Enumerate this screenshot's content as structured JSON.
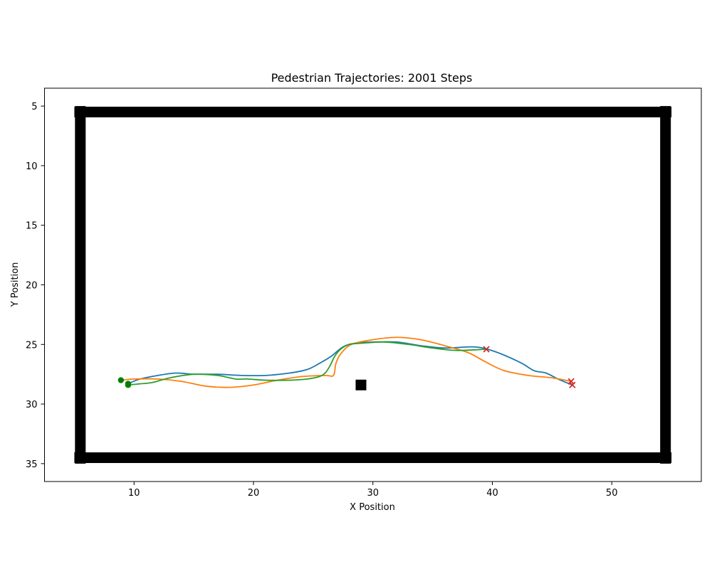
{
  "chart_data": {
    "type": "line",
    "title": "Pedestrian Trajectories: 2001 Steps",
    "xlabel": "X Position",
    "ylabel": "Y Position",
    "xlim": [
      2.5,
      57.5
    ],
    "ylim": [
      36.5,
      3.5
    ],
    "y_inverted": true,
    "xticks": [
      10,
      20,
      30,
      40,
      50
    ],
    "yticks": [
      5,
      10,
      15,
      20,
      25,
      30,
      35
    ],
    "grid": false,
    "legend": "none",
    "walls": [
      {
        "x": [
          5,
          55
        ],
        "y": [
          5.5,
          5.5
        ]
      },
      {
        "x": [
          5,
          55
        ],
        "y": [
          34.5,
          34.5
        ]
      },
      {
        "x": [
          5.5,
          5.5
        ],
        "y": [
          5,
          35
        ]
      },
      {
        "x": [
          54.5,
          54.5
        ],
        "y": [
          5,
          35
        ]
      }
    ],
    "obstacles": [
      {
        "x": 29.0,
        "y": 28.4
      }
    ],
    "series": [
      {
        "color": "#1f77b4",
        "start": {
          "x": 9.5,
          "y": 28.3
        },
        "end": {
          "x": 46.7,
          "y": 28.4
        },
        "x": [
          9.5,
          10.5,
          12,
          13.5,
          15,
          17,
          19,
          21,
          23,
          24.5,
          25.5,
          26.5,
          27.5,
          28.5,
          30,
          32,
          34,
          36,
          38.3,
          39.6,
          41,
          42.5,
          43.5,
          44.5,
          45.5,
          46.7
        ],
        "y": [
          28.3,
          27.9,
          27.6,
          27.4,
          27.5,
          27.5,
          27.6,
          27.6,
          27.4,
          27.1,
          26.6,
          26.0,
          25.2,
          24.9,
          24.8,
          24.8,
          25.1,
          25.3,
          25.2,
          25.4,
          25.9,
          26.6,
          27.2,
          27.4,
          27.9,
          28.4
        ]
      },
      {
        "color": "#ff7f0e",
        "start": {
          "x": 8.9,
          "y": 28.0
        },
        "end": {
          "x": 46.6,
          "y": 28.1
        },
        "x": [
          8.9,
          10,
          12,
          14,
          16,
          18,
          20,
          22,
          24,
          26,
          26.7,
          26.9,
          27.3,
          28.2,
          30,
          32,
          34,
          36,
          38,
          39.5,
          41,
          43,
          45,
          46.6
        ],
        "y": [
          28.0,
          27.9,
          27.9,
          28.1,
          28.5,
          28.6,
          28.4,
          28.0,
          27.7,
          27.6,
          27.6,
          26.6,
          25.8,
          25.0,
          24.6,
          24.4,
          24.6,
          25.1,
          25.7,
          26.5,
          27.2,
          27.6,
          27.8,
          28.1
        ]
      },
      {
        "color": "#2ca02c",
        "start": {
          "x": 9.5,
          "y": 28.4
        },
        "end": {
          "x": 39.5,
          "y": 25.4
        },
        "x": [
          9.5,
          10.5,
          11.5,
          13,
          15,
          17,
          18.5,
          19.5,
          21,
          23,
          24.5,
          25.5,
          26.0,
          26.4,
          26.8,
          27.3,
          28,
          29,
          31,
          33,
          35,
          37,
          39.5
        ],
        "y": [
          28.4,
          28.3,
          28.2,
          27.8,
          27.5,
          27.6,
          27.9,
          27.9,
          28.0,
          28.0,
          27.9,
          27.7,
          27.4,
          26.8,
          26.0,
          25.4,
          25.0,
          24.9,
          24.8,
          25.0,
          25.3,
          25.5,
          25.4
        ]
      }
    ]
  }
}
